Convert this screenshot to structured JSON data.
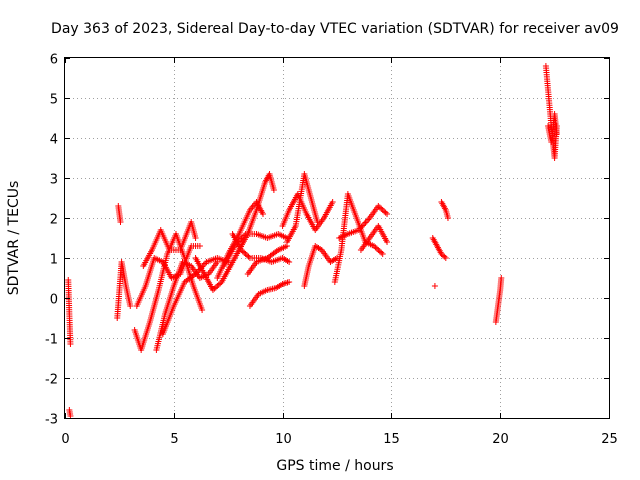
{
  "chart_data": {
    "type": "scatter",
    "title": "Day 363 of 2023, Sidereal Day-to-day VTEC variation (SDTVAR) for receiver av09",
    "xlabel": "GPS time / hours",
    "ylabel": "SDTVAR / TECUs",
    "xlim": [
      0,
      25
    ],
    "ylim": [
      -3,
      6
    ],
    "xticks": [
      0,
      5,
      10,
      15,
      20,
      25
    ],
    "yticks": [
      -3,
      -2,
      -1,
      0,
      1,
      2,
      3,
      4,
      5,
      6
    ],
    "grid": true,
    "marker": "+",
    "color": "#ff0000",
    "tracks": [
      [
        [
          0.15,
          0.45
        ],
        [
          0.2,
          -0.4
        ],
        [
          0.25,
          -1.15
        ]
      ],
      [
        [
          0.2,
          -2.8
        ],
        [
          0.25,
          -2.95
        ]
      ],
      [
        [
          2.45,
          2.3
        ],
        [
          2.55,
          1.9
        ]
      ],
      [
        [
          2.4,
          -0.5
        ],
        [
          2.6,
          0.9
        ],
        [
          2.8,
          0.3
        ],
        [
          3.0,
          -0.2
        ]
      ],
      [
        [
          3.2,
          -0.8
        ],
        [
          3.5,
          -1.3
        ],
        [
          3.9,
          -0.6
        ],
        [
          4.3,
          0.2
        ],
        [
          4.7,
          1.1
        ],
        [
          5.1,
          1.6
        ],
        [
          5.5,
          1.0
        ],
        [
          5.9,
          0.3
        ],
        [
          6.3,
          -0.3
        ]
      ],
      [
        [
          3.3,
          -0.2
        ],
        [
          3.7,
          0.3
        ],
        [
          4.1,
          1.0
        ],
        [
          4.5,
          0.9
        ],
        [
          4.9,
          0.5
        ],
        [
          5.3,
          0.6
        ],
        [
          5.8,
          1.3
        ],
        [
          6.2,
          1.3
        ]
      ],
      [
        [
          3.6,
          0.8
        ],
        [
          4.0,
          1.2
        ],
        [
          4.4,
          1.7
        ],
        [
          4.8,
          1.2
        ],
        [
          5.3,
          1.2
        ],
        [
          5.8,
          1.9
        ],
        [
          6.0,
          1.5
        ]
      ],
      [
        [
          4.2,
          -1.3
        ],
        [
          4.6,
          -0.4
        ],
        [
          5.0,
          0.3
        ],
        [
          5.4,
          0.9
        ],
        [
          5.8,
          0.8
        ],
        [
          6.2,
          0.5
        ],
        [
          6.6,
          0.6
        ],
        [
          7.0,
          0.9
        ]
      ],
      [
        [
          4.5,
          -0.9
        ],
        [
          5.0,
          -0.2
        ],
        [
          5.5,
          0.4
        ],
        [
          6.0,
          0.6
        ],
        [
          6.5,
          0.9
        ],
        [
          7.0,
          1.0
        ],
        [
          7.5,
          0.9
        ]
      ],
      [
        [
          6.0,
          1.0
        ],
        [
          6.4,
          0.6
        ],
        [
          6.8,
          0.2
        ],
        [
          7.2,
          0.4
        ],
        [
          7.6,
          0.8
        ],
        [
          8.0,
          1.2
        ],
        [
          8.4,
          1.6
        ],
        [
          8.8,
          2.2
        ],
        [
          9.2,
          2.9
        ],
        [
          9.4,
          3.1
        ],
        [
          9.6,
          2.7
        ]
      ],
      [
        [
          7.0,
          0.5
        ],
        [
          7.5,
          1.1
        ],
        [
          8.0,
          1.6
        ],
        [
          8.5,
          2.2
        ],
        [
          8.8,
          2.4
        ],
        [
          9.1,
          2.1
        ]
      ],
      [
        [
          7.3,
          0.8
        ],
        [
          7.8,
          1.3
        ],
        [
          8.3,
          1.6
        ],
        [
          8.8,
          1.6
        ],
        [
          9.3,
          1.5
        ],
        [
          9.8,
          1.6
        ],
        [
          10.2,
          1.5
        ]
      ],
      [
        [
          7.7,
          1.6
        ],
        [
          8.1,
          1.2
        ],
        [
          8.5,
          1.0
        ],
        [
          9.0,
          1.0
        ],
        [
          9.5,
          0.9
        ],
        [
          10.0,
          1.0
        ],
        [
          10.3,
          0.9
        ]
      ],
      [
        [
          8.4,
          0.6
        ],
        [
          8.8,
          0.9
        ],
        [
          9.3,
          1.0
        ],
        [
          9.8,
          1.2
        ],
        [
          10.2,
          1.3
        ]
      ],
      [
        [
          8.5,
          -0.2
        ],
        [
          8.9,
          0.1
        ],
        [
          9.3,
          0.2
        ],
        [
          9.7,
          0.25
        ],
        [
          10.0,
          0.35
        ],
        [
          10.3,
          0.4
        ]
      ],
      [
        [
          10.0,
          1.8
        ],
        [
          10.3,
          2.2
        ],
        [
          10.7,
          2.6
        ],
        [
          11.1,
          2.1
        ],
        [
          11.5,
          1.7
        ],
        [
          11.9,
          2.0
        ],
        [
          12.3,
          2.4
        ]
      ],
      [
        [
          10.2,
          1.4
        ],
        [
          10.6,
          1.8
        ],
        [
          11.0,
          3.1
        ],
        [
          11.3,
          2.5
        ],
        [
          11.6,
          1.9
        ]
      ],
      [
        [
          11.0,
          0.3
        ],
        [
          11.2,
          0.8
        ],
        [
          11.5,
          1.3
        ],
        [
          11.8,
          1.2
        ],
        [
          12.2,
          0.9
        ],
        [
          12.5,
          1.0
        ]
      ],
      [
        [
          12.4,
          0.4
        ],
        [
          12.7,
          1.2
        ],
        [
          13.0,
          2.6
        ],
        [
          13.4,
          2.0
        ],
        [
          13.8,
          1.4
        ],
        [
          14.2,
          1.3
        ],
        [
          14.6,
          1.1
        ]
      ],
      [
        [
          12.6,
          1.5
        ],
        [
          13.0,
          1.6
        ],
        [
          13.5,
          1.7
        ],
        [
          14.0,
          2.0
        ],
        [
          14.4,
          2.3
        ],
        [
          14.8,
          2.1
        ]
      ],
      [
        [
          13.6,
          1.2
        ],
        [
          14.0,
          1.5
        ],
        [
          14.4,
          1.8
        ],
        [
          14.8,
          1.4
        ]
      ],
      [
        [
          16.9,
          1.5
        ],
        [
          17.1,
          1.3
        ],
        [
          17.3,
          1.1
        ],
        [
          17.5,
          1.0
        ]
      ],
      [
        [
          17.0,
          0.3
        ]
      ],
      [
        [
          17.3,
          2.4
        ],
        [
          17.5,
          2.2
        ],
        [
          17.6,
          2.0
        ]
      ],
      [
        [
          19.8,
          -0.6
        ],
        [
          19.9,
          -0.2
        ],
        [
          20.0,
          0.2
        ],
        [
          20.05,
          0.5
        ]
      ],
      [
        [
          22.1,
          5.8
        ],
        [
          22.2,
          5.2
        ],
        [
          22.3,
          4.6
        ],
        [
          22.4,
          4.0
        ],
        [
          22.5,
          3.5
        ],
        [
          22.6,
          4.3
        ]
      ],
      [
        [
          22.2,
          4.3
        ],
        [
          22.35,
          3.9
        ],
        [
          22.5,
          4.6
        ],
        [
          22.6,
          4.1
        ]
      ]
    ]
  }
}
